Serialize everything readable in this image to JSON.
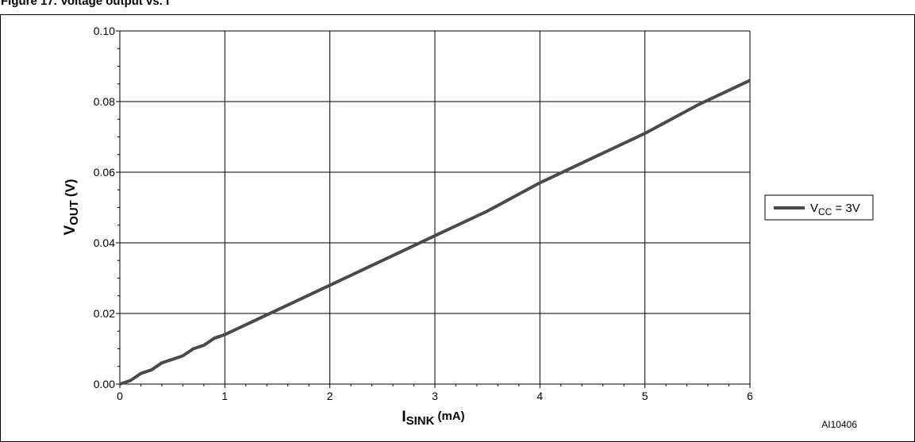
{
  "figure": {
    "header_title": "Figure 17. Voltage output vs. I",
    "code": "AI10406"
  },
  "chart_data": {
    "type": "line",
    "title": "",
    "xlabel": "I",
    "xlabel_sub": "SINK",
    "xlabel_unit": "(mA)",
    "ylabel": "V",
    "ylabel_sub": "OUT",
    "ylabel_unit": "(V)",
    "xlim": [
      0,
      6
    ],
    "ylim": [
      0,
      0.1
    ],
    "x_ticks": [
      "0",
      "1",
      "2",
      "3",
      "4",
      "5",
      "6"
    ],
    "y_ticks": [
      "0.00",
      "0.02",
      "0.04",
      "0.06",
      "0.08",
      "0.10"
    ],
    "grid": true,
    "legend_position": "right",
    "colors": {
      "series": "#4a4a4a",
      "grid": "#000000"
    },
    "series": [
      {
        "name": "V",
        "name_sub": "CC",
        "name_suffix": " = 3V",
        "x": [
          0,
          0.1,
          0.2,
          0.3,
          0.4,
          0.5,
          0.6,
          0.7,
          0.8,
          0.9,
          1.0,
          1.5,
          2.0,
          2.5,
          3.0,
          3.5,
          4.0,
          4.5,
          5.0,
          5.5,
          6.0
        ],
        "y": [
          0,
          0.001,
          0.003,
          0.004,
          0.006,
          0.007,
          0.008,
          0.01,
          0.011,
          0.013,
          0.014,
          0.021,
          0.028,
          0.035,
          0.042,
          0.049,
          0.057,
          0.064,
          0.071,
          0.079,
          0.086
        ]
      }
    ]
  }
}
